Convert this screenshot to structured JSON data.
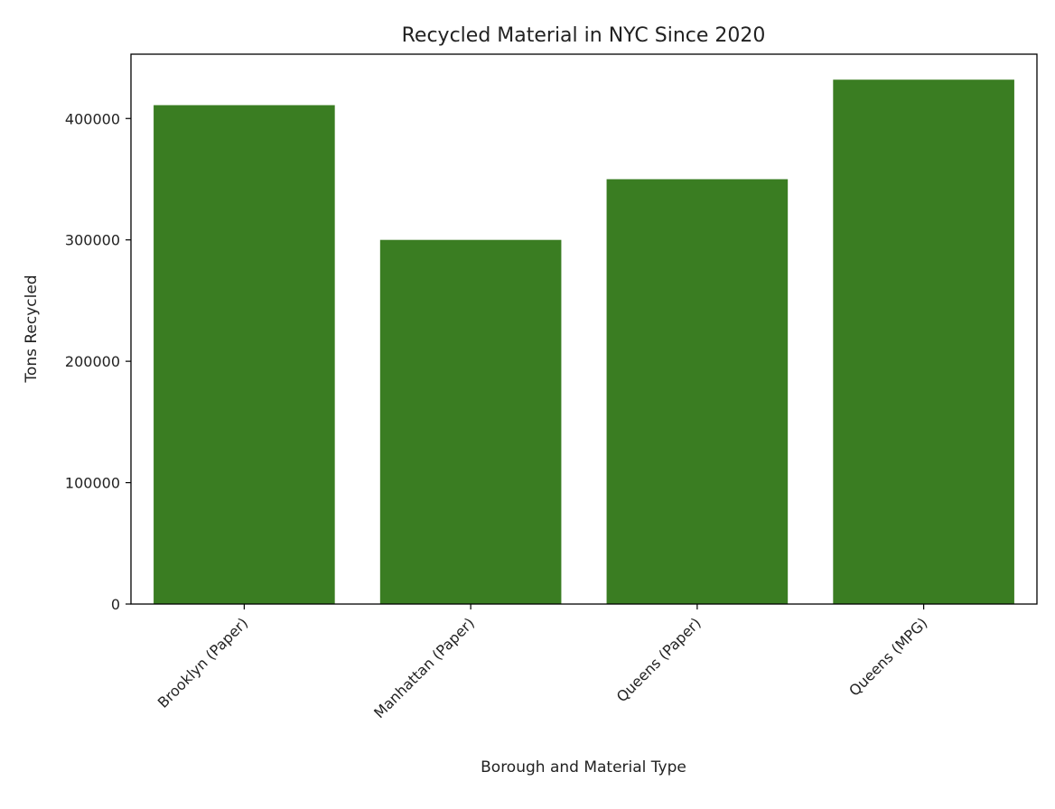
{
  "chart_data": {
    "type": "bar",
    "title": "Recycled Material in NYC Since 2020",
    "xlabel": "Borough and Material Type",
    "ylabel": "Tons Recycled",
    "categories": [
      "Brooklyn (Paper)",
      "Manhattan (Paper)",
      "Queens (Paper)",
      "Queens (MPG)"
    ],
    "values": [
      411000,
      300000,
      350000,
      432000
    ],
    "ylim": [
      0,
      453000
    ],
    "yticks": [
      0,
      100000,
      200000,
      300000,
      400000
    ],
    "ytick_labels": [
      "0",
      "100000",
      "200000",
      "300000",
      "400000"
    ],
    "grid": false,
    "legend": "none",
    "bar_color": "#3a7d22"
  }
}
